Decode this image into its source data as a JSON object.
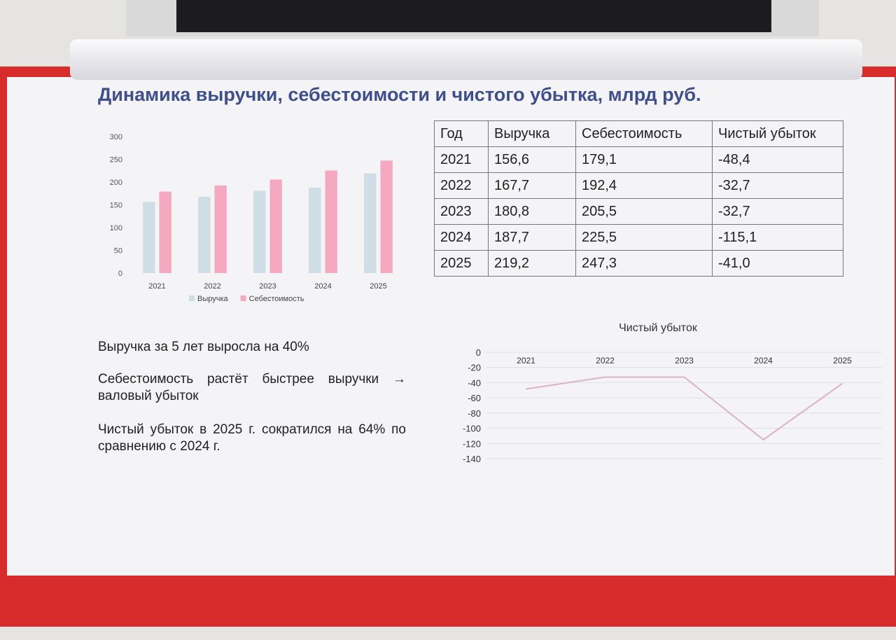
{
  "title": "Динамика выручки, себестоимости и чистого убытка, млрд руб.",
  "chart_data": [
    {
      "type": "bar",
      "categories": [
        "2021",
        "2022",
        "2023",
        "2024",
        "2025"
      ],
      "series": [
        {
          "name": "Выручка",
          "color": "#cfdde4",
          "values": [
            156.6,
            167.7,
            180.8,
            187.7,
            219.2
          ]
        },
        {
          "name": "Себестоимость",
          "color": "#f5a9c0",
          "values": [
            179.1,
            192.4,
            205.5,
            225.5,
            247.3
          ]
        }
      ],
      "ylim": [
        0,
        300
      ],
      "yticks": [
        0,
        50,
        100,
        150,
        200,
        250,
        300
      ],
      "grid": false,
      "legend": "bottom"
    },
    {
      "type": "line",
      "title": "Чистый убыток",
      "categories": [
        "2021",
        "2022",
        "2023",
        "2024",
        "2025"
      ],
      "values": [
        -48.4,
        -32.7,
        -32.7,
        -115.1,
        -41.0
      ],
      "color": "#dcb3bf",
      "ylim": [
        -140,
        0
      ],
      "yticks": [
        -140,
        -120,
        -100,
        -80,
        -60,
        -40,
        -20,
        0
      ],
      "grid": true
    }
  ],
  "table": {
    "header": [
      "Год",
      "Выручка",
      "Себестоимость",
      "Чистый убыток"
    ],
    "rows": [
      [
        "2021",
        "156,6",
        "179,1",
        "-48,4"
      ],
      [
        "2022",
        "167,7",
        "192,4",
        "-32,7"
      ],
      [
        "2023",
        "180,8",
        "205,5",
        "-32,7"
      ],
      [
        "2024",
        "187,7",
        "225,5",
        "-115,1"
      ],
      [
        "2025",
        "219,2",
        "247,3",
        "-41,0"
      ]
    ]
  },
  "notes": [
    "Выручка за 5 лет выросла на 40%",
    "Себестоимость растёт быстрее выручки → валовый убыток",
    "Чистый убыток в 2025 г. сократился на 64% по сравнению с 2024 г."
  ]
}
